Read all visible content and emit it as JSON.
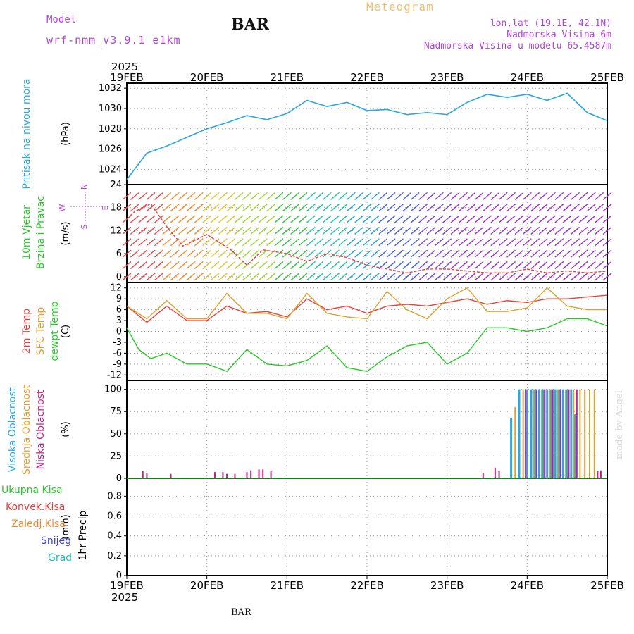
{
  "header": {
    "model_label": "Model",
    "model_name": "wrf-nmm_v3.9.1 e1km",
    "station": "BAR",
    "title": "Meteogram",
    "lonlat": "lon,lat (19.1E, 42.1N)",
    "elevation": "Nadmorska Visina 6m",
    "model_elevation": "Nadmorska Visina u modelu 65.4587m"
  },
  "signature": "made by Angel",
  "footer_station": "BAR",
  "time_axis": {
    "year": "2025",
    "ticks": [
      "19FEB",
      "20FEB",
      "21FEB",
      "22FEB",
      "23FEB",
      "24FEB",
      "25FEB"
    ]
  },
  "colors": {
    "pressure": "#2aa6e0",
    "temp2m": "#e8413b",
    "sfc_temp": "#e0a030",
    "dewpt": "#26c926",
    "high_cloud": "#2aa6e0",
    "mid_cloud": "#e0a030",
    "low_cloud": "#c0208a",
    "total_precip": "#26c926",
    "conv_precip": "#e8413b",
    "frz_precip": "#f08a2a",
    "snow": "#3a3ae0",
    "graupel": "#20c0c0",
    "wind_label": "#26c926",
    "wind_dir_label": "#b044d8"
  },
  "chart_data": [
    {
      "type": "line",
      "name": "pressure-panel",
      "ylabel_lines": [
        "Pritisak na nivou mora"
      ],
      "unit": "(hPa)",
      "yticks": [
        1024,
        1026,
        1028,
        1030,
        1032
      ],
      "ylim": [
        1022.5,
        1032.5
      ],
      "grid": true,
      "series": [
        {
          "color_key": "pressure",
          "x": [
            0,
            0.25,
            0.5,
            1,
            1.25,
            1.5,
            1.75,
            2,
            2.25,
            2.5,
            2.75,
            3,
            3.25,
            3.5,
            3.75,
            4,
            4.25,
            4.5,
            4.75,
            5,
            5.25,
            5.5,
            5.75,
            6
          ],
          "values": [
            1023.0,
            1025.6,
            1026.3,
            1028.0,
            1028.6,
            1029.3,
            1028.9,
            1029.5,
            1030.8,
            1030.2,
            1030.6,
            1029.8,
            1029.9,
            1029.4,
            1029.6,
            1029.4,
            1030.6,
            1031.4,
            1031.1,
            1031.4,
            1030.8,
            1031.5,
            1029.6,
            1028.8
          ]
        }
      ]
    },
    {
      "type": "line",
      "name": "wind-panel",
      "ylabel_lines": [
        "10m Vjetar",
        "Brzina i Pravac"
      ],
      "unit": "(m/s)",
      "compass": {
        "n": "N",
        "s": "S",
        "e": "E",
        "w": "W"
      },
      "yticks": [
        0,
        6,
        12,
        18,
        24
      ],
      "ylim": [
        -1.5,
        24
      ],
      "grid": true,
      "series": [
        {
          "name": "wind speed",
          "color_key": "temp2m",
          "x": [
            0,
            0.1,
            0.3,
            0.5,
            0.7,
            1,
            1.3,
            1.5,
            1.7,
            2,
            2.25,
            2.5,
            2.75,
            3,
            3.25,
            3.5,
            3.75,
            4,
            4.25,
            4.5,
            4.75,
            5,
            5.25,
            5.5,
            5.75,
            6
          ],
          "values": [
            15,
            17,
            19,
            13,
            8,
            11,
            7,
            3,
            7,
            6,
            4,
            6,
            5,
            3,
            2,
            1,
            2,
            2,
            1.5,
            1,
            1,
            2,
            1,
            1.5,
            1,
            1.5
          ]
        }
      ]
    },
    {
      "type": "line",
      "name": "temperature-panel",
      "ylabel_lines": [
        "2m Temp",
        "SFC Temp",
        "dewpt Temp"
      ],
      "unit": "(C)",
      "yticks": [
        -12,
        -9,
        -6,
        -3,
        0,
        3,
        6,
        9,
        12
      ],
      "ylim": [
        -13.5,
        13.5
      ],
      "grid": true,
      "series": [
        {
          "name": "2m Temp",
          "color_key": "temp2m",
          "x": [
            0,
            0.25,
            0.5,
            0.75,
            1,
            1.25,
            1.5,
            1.75,
            2,
            2.25,
            2.5,
            2.75,
            3,
            3.25,
            3.5,
            3.75,
            4,
            4.25,
            4.5,
            4.75,
            5,
            5.25,
            5.5,
            5.75,
            6
          ],
          "values": [
            7,
            2.5,
            7,
            3,
            3,
            7,
            5,
            5.5,
            4,
            9,
            6,
            7,
            5,
            7,
            7.5,
            7,
            8,
            9,
            7.5,
            8.5,
            8,
            9,
            9,
            9.5,
            10
          ]
        },
        {
          "name": "SFC Temp",
          "color_key": "sfc_temp",
          "x": [
            0,
            0.25,
            0.5,
            0.75,
            1,
            1.25,
            1.5,
            1.75,
            2,
            2.25,
            2.5,
            2.75,
            3,
            3.25,
            3.5,
            3.75,
            4,
            4.25,
            4.5,
            4.75,
            5,
            5.25,
            5.5,
            5.75,
            6
          ],
          "values": [
            7,
            3.5,
            8.5,
            3.5,
            3.5,
            10.5,
            5,
            5,
            3.5,
            10.5,
            5,
            4,
            3.5,
            11,
            6,
            3.5,
            9,
            12,
            5.5,
            5.5,
            6.5,
            12,
            7,
            6,
            6
          ]
        },
        {
          "name": "dewpt Temp",
          "color_key": "dewpt",
          "x": [
            0,
            0.15,
            0.3,
            0.5,
            0.75,
            1,
            1.25,
            1.5,
            1.75,
            2,
            2.25,
            2.5,
            2.75,
            3,
            3.25,
            3.5,
            3.75,
            4,
            4.25,
            4.5,
            4.75,
            5,
            5.25,
            5.5,
            5.75,
            6
          ],
          "values": [
            1,
            -5,
            -7.5,
            -6,
            -9,
            -9,
            -11,
            -5,
            -9,
            -9.5,
            -8,
            -4,
            -10,
            -11,
            -7,
            -4,
            -3,
            -9,
            -6,
            1,
            1,
            0,
            1,
            3.5,
            3.5,
            1.5
          ]
        }
      ]
    },
    {
      "type": "bar",
      "name": "cloud-panel",
      "ylabel_lines": [
        "Visoka Oblacnost",
        "Srednja Oblacnost",
        "Niska Oblacnost"
      ],
      "unit": "(%)",
      "yticks": [
        0,
        25,
        50,
        75,
        100
      ],
      "ylim": [
        0,
        110
      ],
      "grid": true,
      "series": [
        {
          "name": "Visoka Oblacnost",
          "color_key": "high_cloud",
          "x": [
            4.8,
            4.9,
            5.0,
            5.05,
            5.1,
            5.15,
            5.2,
            5.25,
            5.3,
            5.35,
            5.4,
            5.45,
            5.5,
            5.55,
            5.6
          ],
          "values": [
            68,
            100,
            100,
            100,
            100,
            100,
            100,
            100,
            100,
            100,
            100,
            100,
            100,
            100,
            72
          ]
        },
        {
          "name": "Srednja Oblacnost",
          "color_key": "mid_cloud",
          "x": [
            4.85,
            4.95,
            5.08,
            5.18,
            5.28,
            5.38,
            5.48,
            5.58,
            5.66,
            5.72,
            5.78,
            5.84
          ],
          "values": [
            80,
            100,
            100,
            100,
            100,
            100,
            100,
            100,
            100,
            100,
            100,
            100
          ]
        },
        {
          "name": "Niska Oblacnost",
          "color_key": "low_cloud",
          "x": [
            0.2,
            0.25,
            0.55,
            1.1,
            1.2,
            1.25,
            1.35,
            1.5,
            1.55,
            1.65,
            1.7,
            1.8,
            4.45,
            4.6,
            4.65,
            4.98,
            5.12,
            5.22,
            5.32,
            5.42,
            5.52,
            5.62,
            5.88,
            5.92
          ],
          "values": [
            8,
            6,
            5,
            7,
            7,
            5,
            5,
            7,
            9,
            10,
            10,
            8,
            6,
            12,
            8,
            100,
            100,
            100,
            100,
            100,
            100,
            100,
            8,
            9
          ]
        }
      ]
    },
    {
      "type": "bar",
      "name": "precip-panel",
      "ylabel_lines": [
        "1hr Precip"
      ],
      "unit": "(mm)",
      "legend": [
        "Ukupna Kisa",
        "Konvek.Kisa",
        "Zaledj.Kisa",
        "Snijeg",
        "Grad"
      ],
      "yticks": [
        0,
        0.2,
        0.4,
        0.6,
        0.8
      ],
      "ylim": [
        0,
        0.98
      ],
      "grid": true,
      "series": []
    }
  ]
}
